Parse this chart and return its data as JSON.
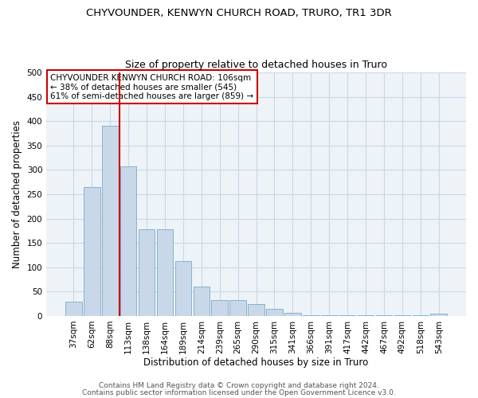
{
  "title": "CHYVOUNDER, KENWYN CHURCH ROAD, TRURO, TR1 3DR",
  "subtitle": "Size of property relative to detached houses in Truro",
  "xlabel": "Distribution of detached houses by size in Truro",
  "ylabel": "Number of detached properties",
  "footer1": "Contains HM Land Registry data © Crown copyright and database right 2024.",
  "footer2": "Contains public sector information licensed under the Open Government Licence v3.0.",
  "categories": [
    "37sqm",
    "62sqm",
    "88sqm",
    "113sqm",
    "138sqm",
    "164sqm",
    "189sqm",
    "214sqm",
    "239sqm",
    "265sqm",
    "290sqm",
    "315sqm",
    "341sqm",
    "366sqm",
    "391sqm",
    "417sqm",
    "442sqm",
    "467sqm",
    "492sqm",
    "518sqm",
    "543sqm"
  ],
  "values": [
    30,
    265,
    390,
    308,
    178,
    178,
    113,
    60,
    32,
    32,
    25,
    14,
    7,
    2,
    2,
    2,
    2,
    2,
    2,
    2,
    5
  ],
  "bar_color": "#c8d8e8",
  "bar_edge_color": "#7aaac8",
  "grid_color": "#c8d8e8",
  "background_color": "#eef3f8",
  "vline_color": "#cc0000",
  "annotation_text": "CHYVOUNDER KENWYN CHURCH ROAD: 106sqm\n← 38% of detached houses are smaller (545)\n61% of semi-detached houses are larger (859) →",
  "annotation_box_edge_color": "#cc0000",
  "ylim": [
    0,
    500
  ],
  "yticks": [
    0,
    50,
    100,
    150,
    200,
    250,
    300,
    350,
    400,
    450,
    500
  ],
  "title_fontsize": 9.5,
  "subtitle_fontsize": 9,
  "axis_label_fontsize": 8.5,
  "tick_fontsize": 7.5,
  "annotation_fontsize": 7.5,
  "footer_fontsize": 6.5
}
